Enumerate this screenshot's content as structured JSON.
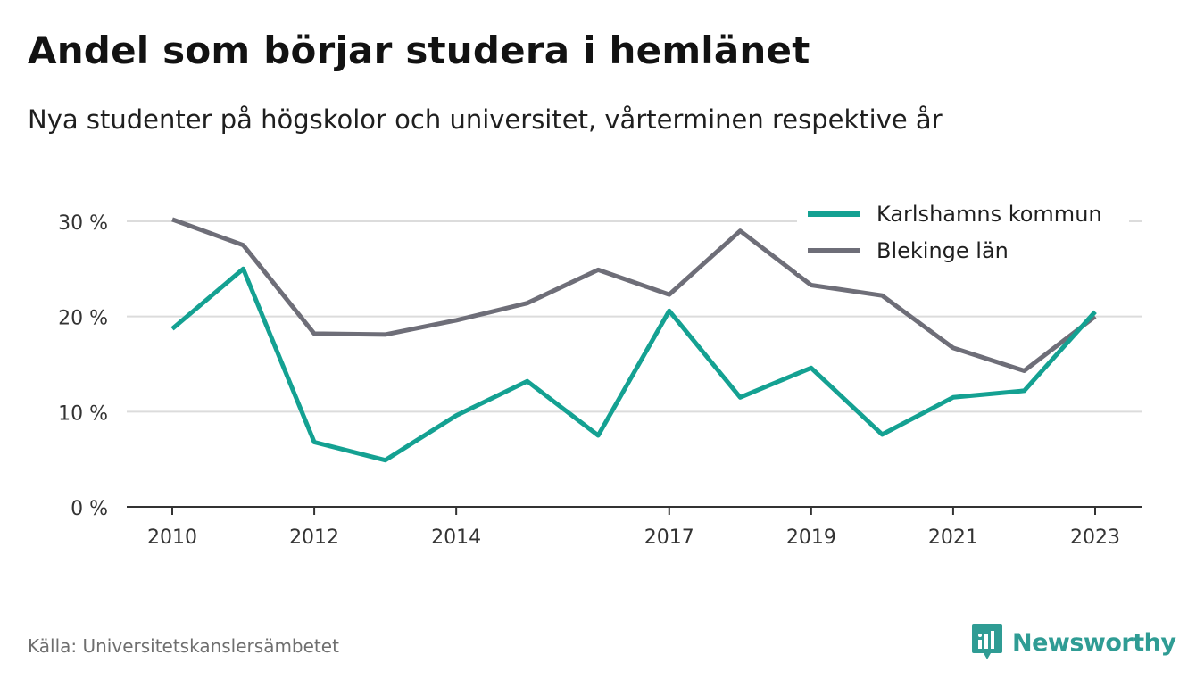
{
  "header": {
    "title": "Andel som börjar studera i hemlänet",
    "subtitle": "Nya studenter på högskolor och universitet, vårterminen respektive år"
  },
  "footer": {
    "source": "Källa: Universitetskanslersämbetet",
    "brand": "Newsworthy"
  },
  "colors": {
    "karlshamn": "#14a192",
    "blekinge": "#6e6e78",
    "grid": "#dcdcdc",
    "axis": "#333333",
    "brand": "#2f9c94"
  },
  "chart_data": {
    "type": "line",
    "x": [
      2010,
      2011,
      2012,
      2013,
      2014,
      2015,
      2016,
      2017,
      2018,
      2019,
      2020,
      2021,
      2022,
      2023
    ],
    "x_tick_values": [
      2010,
      2012,
      2014,
      2017,
      2019,
      2021,
      2023
    ],
    "x_tick_labels": [
      "2010",
      "2012",
      "2014",
      "2017",
      "2019",
      "2021",
      "2023"
    ],
    "y_tick_values": [
      0,
      10,
      20,
      30
    ],
    "y_tick_labels": [
      "0 %",
      "10 %",
      "20 %",
      "30 %"
    ],
    "xlim": [
      2010,
      2023
    ],
    "ylim": [
      0,
      30
    ],
    "grid": true,
    "legend_position": "top-right",
    "series": [
      {
        "name": "Karlshamns kommun",
        "color": "#14a192",
        "values": [
          18.7,
          25.0,
          6.8,
          4.9,
          9.6,
          13.2,
          7.5,
          20.6,
          11.5,
          14.6,
          7.6,
          11.5,
          12.2,
          20.5
        ]
      },
      {
        "name": "Blekinge län",
        "color": "#6e6e78",
        "values": [
          30.2,
          27.5,
          18.2,
          18.1,
          19.6,
          21.4,
          24.9,
          22.3,
          29.0,
          23.3,
          22.2,
          16.7,
          14.3,
          20.0
        ]
      }
    ]
  }
}
